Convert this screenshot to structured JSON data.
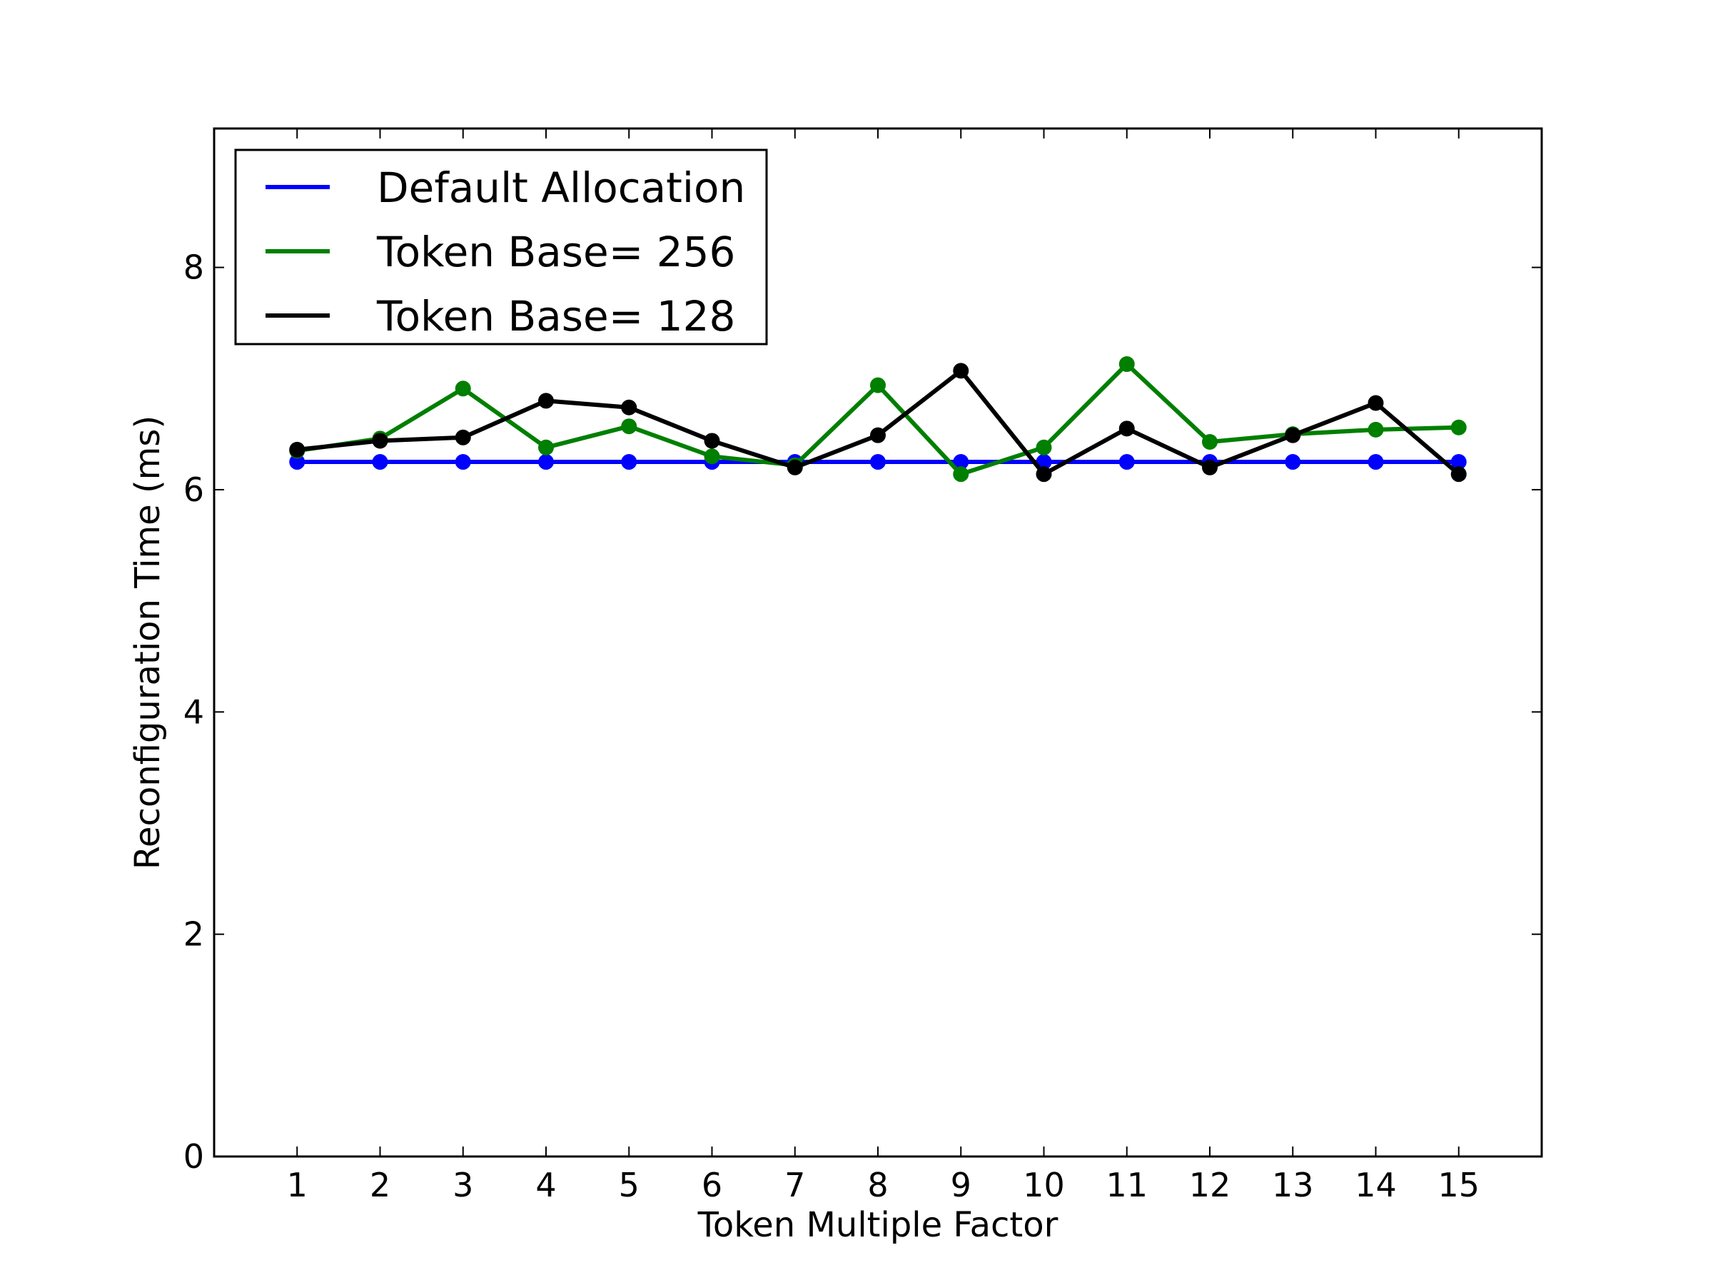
{
  "chart_data": {
    "type": "line",
    "title": "",
    "xlabel": "Token Multiple Factor",
    "ylabel": "Reconfiguration Time (ms)",
    "x": [
      1,
      2,
      3,
      4,
      5,
      6,
      7,
      8,
      9,
      10,
      11,
      12,
      13,
      14,
      15
    ],
    "xlim": [
      0,
      16
    ],
    "ylim": [
      0,
      9.25
    ],
    "xticks": [
      "1",
      "2",
      "3",
      "4",
      "5",
      "6",
      "7",
      "8",
      "9",
      "10",
      "11",
      "12",
      "13",
      "14",
      "15"
    ],
    "yticks": [
      "0",
      "2",
      "4",
      "6",
      "8"
    ],
    "grid": false,
    "legend_position": "top-left",
    "series": [
      {
        "name": "Default Allocation",
        "color": "#0000ff",
        "values": [
          6.25,
          6.25,
          6.25,
          6.25,
          6.25,
          6.25,
          6.25,
          6.25,
          6.25,
          6.25,
          6.25,
          6.25,
          6.25,
          6.25,
          6.25
        ]
      },
      {
        "name": "Token Base= 256",
        "color": "#007f00",
        "values": [
          6.35,
          6.46,
          6.91,
          6.38,
          6.57,
          6.3,
          6.22,
          6.94,
          6.14,
          6.38,
          7.13,
          6.43,
          6.5,
          6.54,
          6.56
        ]
      },
      {
        "name": "Token Base= 128",
        "color": "#000000",
        "values": [
          6.36,
          6.44,
          6.47,
          6.8,
          6.74,
          6.44,
          6.2,
          6.49,
          7.07,
          6.14,
          6.55,
          6.2,
          6.49,
          6.78,
          6.14
        ]
      }
    ]
  }
}
